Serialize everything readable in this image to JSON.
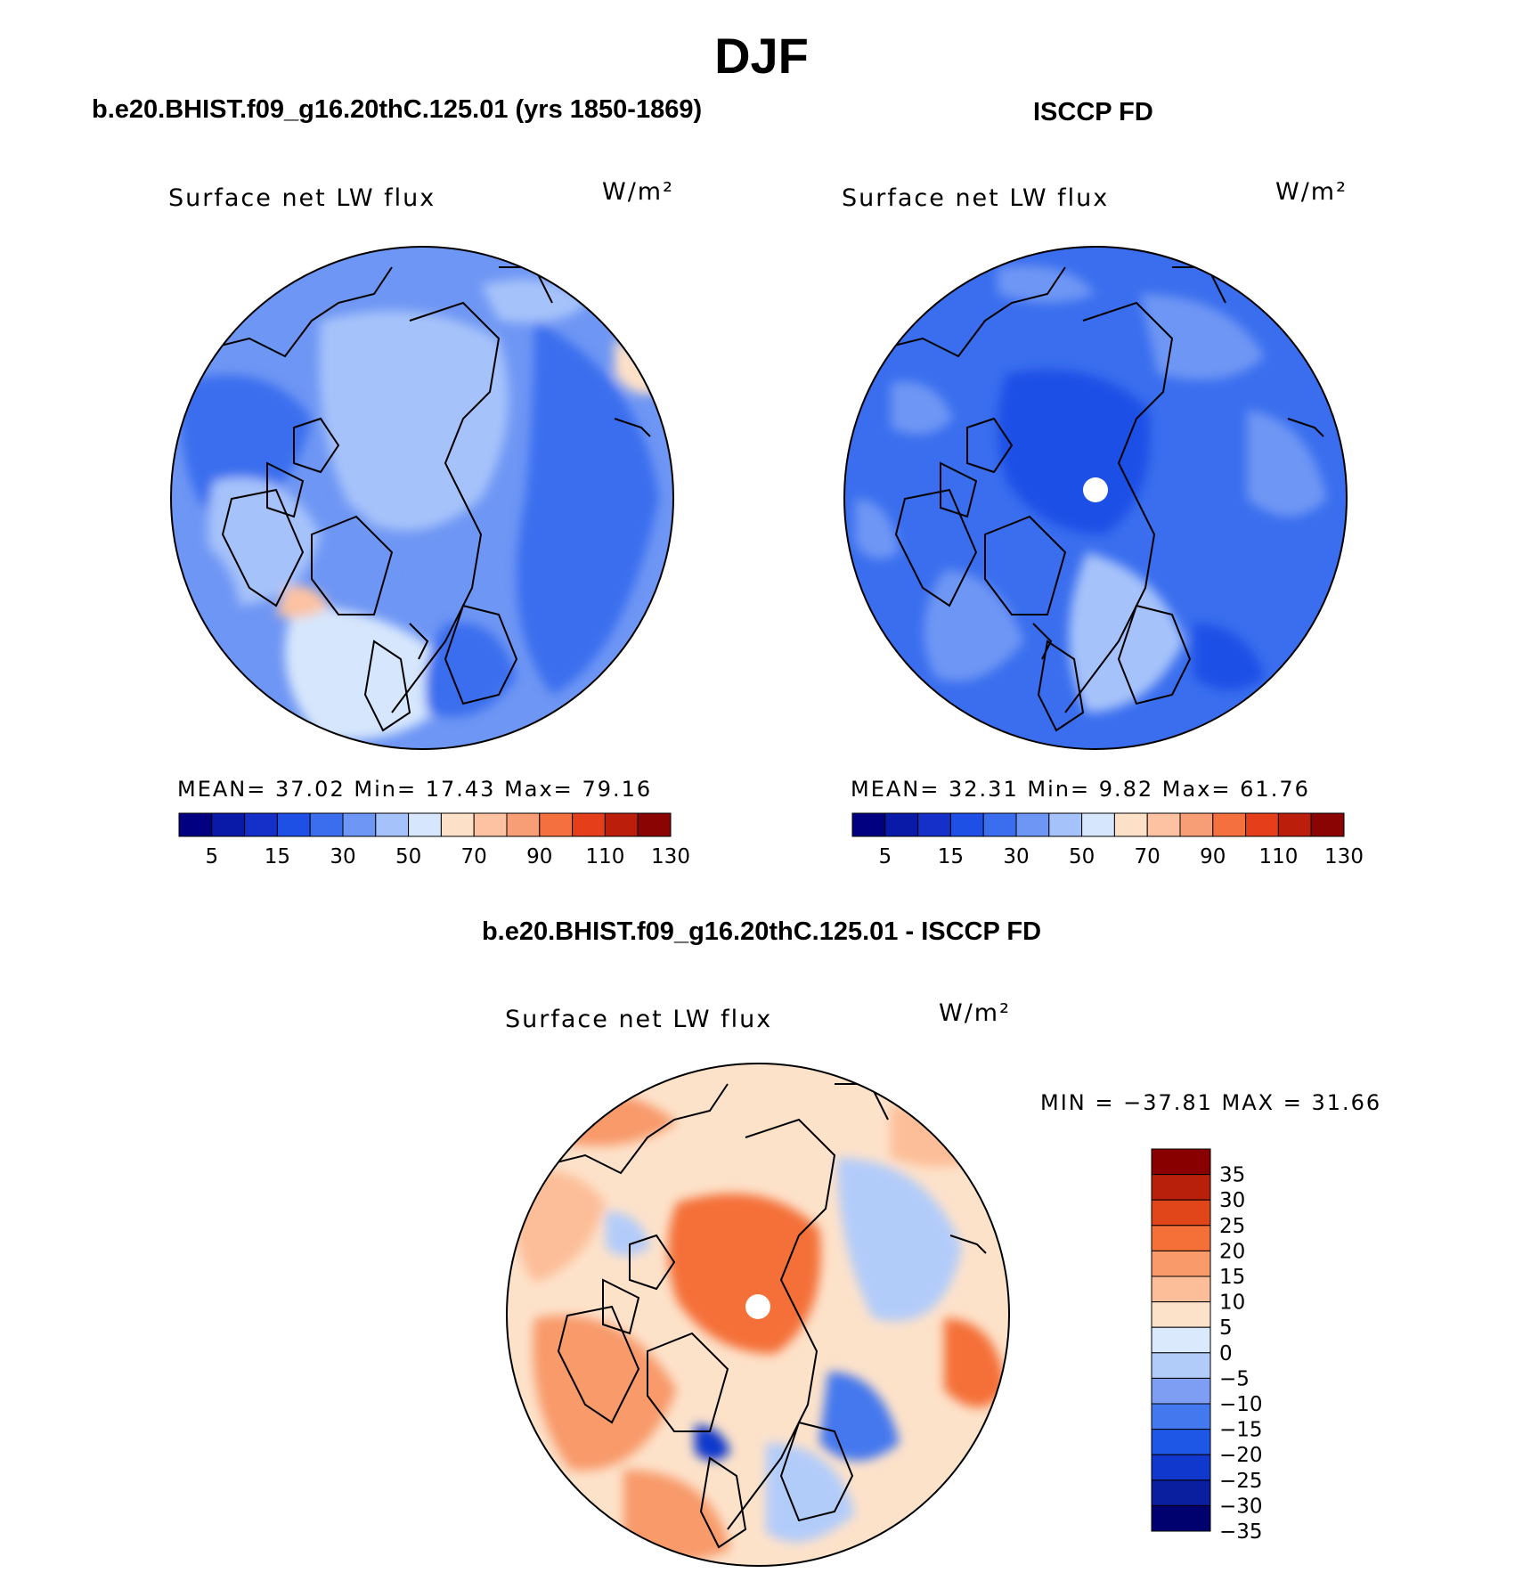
{
  "title": "DJF",
  "palette": {
    "sequential": [
      "#000080",
      "#0a1aa8",
      "#1430c8",
      "#1e50e6",
      "#3a6eee",
      "#6e96f4",
      "#a6c2fa",
      "#d6e6fc",
      "#fde0c8",
      "#fcc2a2",
      "#f89e76",
      "#f4703e",
      "#e43e1a",
      "#bc1e0c",
      "#8a0404"
    ],
    "diverging": [
      "#00006e",
      "#0a1ea0",
      "#1038cc",
      "#1e56e6",
      "#4478ee",
      "#7e9ef4",
      "#b2ccfa",
      "#daeafc",
      "#fde2ca",
      "#fcbe98",
      "#f89a6a",
      "#f47038",
      "#e0461a",
      "#b8200c",
      "#880000"
    ],
    "outline": "#000000"
  },
  "panels": {
    "model": {
      "title": "b.e20.BHIST.f09_g16.20thC.125.01 (yrs 1850-1869)",
      "label": "Surface net LW flux",
      "units": "W/m²",
      "stats": {
        "mean_label": "MEAN=",
        "mean": "37.02",
        "min_label": "Min=",
        "min": "17.43",
        "max_label": "Max=",
        "max": "79.16"
      },
      "colorbar_ticks": [
        "5",
        "15",
        "30",
        "50",
        "70",
        "90",
        "110",
        "130"
      ]
    },
    "obs": {
      "title": "ISCCP FD",
      "label": "Surface net LW flux",
      "units": "W/m²",
      "stats": {
        "mean_label": "MEAN=",
        "mean": "32.31",
        "min_label": "Min=",
        "min": "9.82",
        "max_label": "Max=",
        "max": "61.76"
      },
      "colorbar_ticks": [
        "5",
        "15",
        "30",
        "50",
        "70",
        "90",
        "110",
        "130"
      ]
    },
    "diff": {
      "title": "b.e20.BHIST.f09_g16.20thC.125.01 - ISCCP FD",
      "label": "Surface net LW flux",
      "units": "W/m²",
      "minmax": "MIN = −37.81 MAX =   31.66",
      "colorbar_ticks": [
        "35",
        "30",
        "25",
        "20",
        "15",
        "10",
        "5",
        "0",
        "−5",
        "−10",
        "−15",
        "−20",
        "−25",
        "−30",
        "−35"
      ]
    }
  }
}
